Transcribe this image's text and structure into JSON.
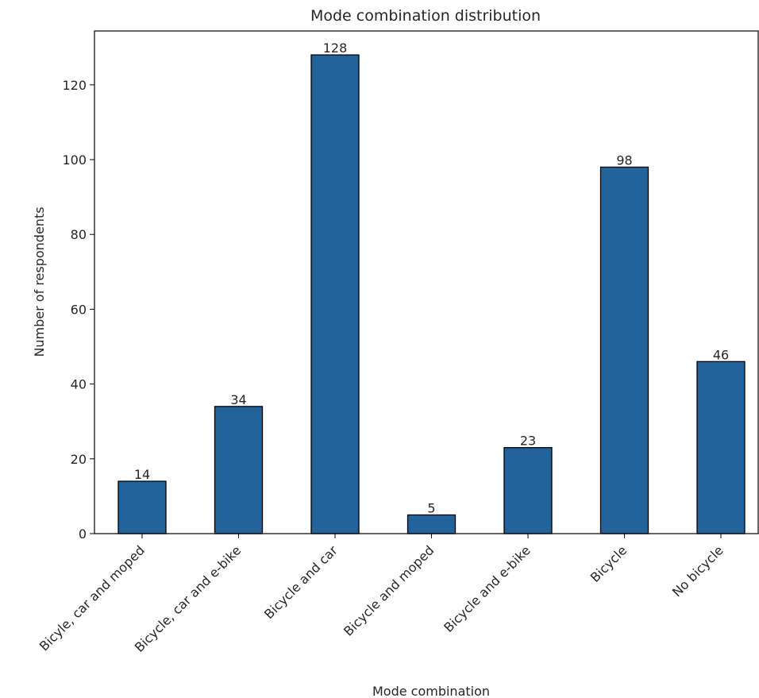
{
  "chart_data": {
    "type": "bar",
    "title": "Mode combination distribution",
    "xlabel": "Mode combination",
    "ylabel": "Number of respondents",
    "categories": [
      "Bicyle, car and moped",
      "Bicycle, car and e-bike",
      "Bicycle and car",
      "Bicycle and moped",
      "Bicycle and e-bike",
      "Bicycle",
      "No bicycle"
    ],
    "values": [
      14,
      34,
      128,
      5,
      23,
      98,
      46
    ],
    "data_labels": [
      "14",
      "34",
      "128",
      "5",
      "23",
      "98",
      "46"
    ],
    "ylim": [
      0,
      134.4
    ],
    "yticks": [
      0,
      20,
      40,
      60,
      80,
      100,
      120
    ],
    "grid": false,
    "bar_color": "#23639b",
    "edge_color": "#000000"
  }
}
